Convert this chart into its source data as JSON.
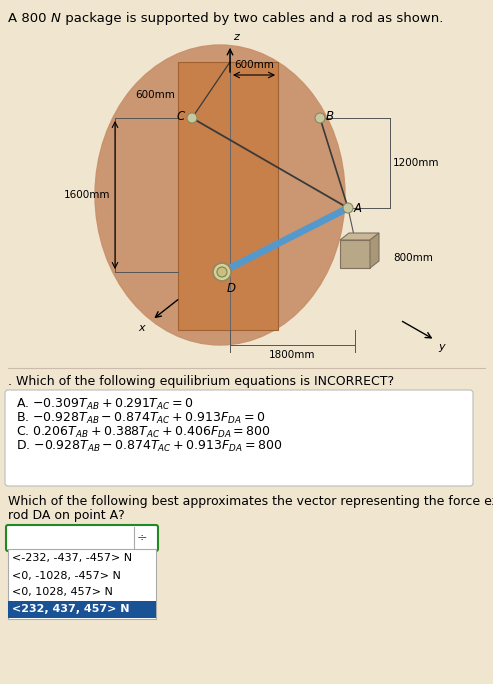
{
  "page_bg": "#f0e6d0",
  "diagram_bg": "#c8906a",
  "wall_color": "#d4924e",
  "wall_edge": "#b07838",
  "cable_color": "#3a3a3a",
  "rod_color": "#5599cc",
  "joint_color": "#c8c898",
  "joint_edge": "#888860",
  "box_front": "#b8a888",
  "box_top": "#c8b898",
  "box_right": "#a89878",
  "box_edge": "#807060",
  "axis_color": "#333333",
  "dim_color": "#444444",
  "selected_color": "#1a5296",
  "dropdown_options": [
    "<-232, -437, -457> N",
    "<0, -1028, -457> N",
    "<0, 1028, 457> N",
    "<232, 437, 457> N"
  ],
  "selected_option": "<232, 437, 457> N",
  "title1": "A 800",
  "title_N": "N",
  "title2": " package is supported by two cables and a rod as shown.",
  "question1": ". Which of the following equilibrium equations is INCORRECT?",
  "question2": "Which of the following best approximates the vector representing the force exerted by",
  "question2b": "rod DA on point A?",
  "opt_A": "A. $-0.309T_{AB} + 0.291T_{AC} = 0$",
  "opt_B": "B. $-0.928T_{AB} - 0.874T_{AC} + 0.913F_{DA} = 0$",
  "opt_C": "C. $0.206T_{AB} + 0.388T_{AC} + 0.406F_{DA} = 800$",
  "opt_D": "D. $-0.928T_{AB} - 0.874T_{AC} + 0.913F_{DA} = 800$"
}
